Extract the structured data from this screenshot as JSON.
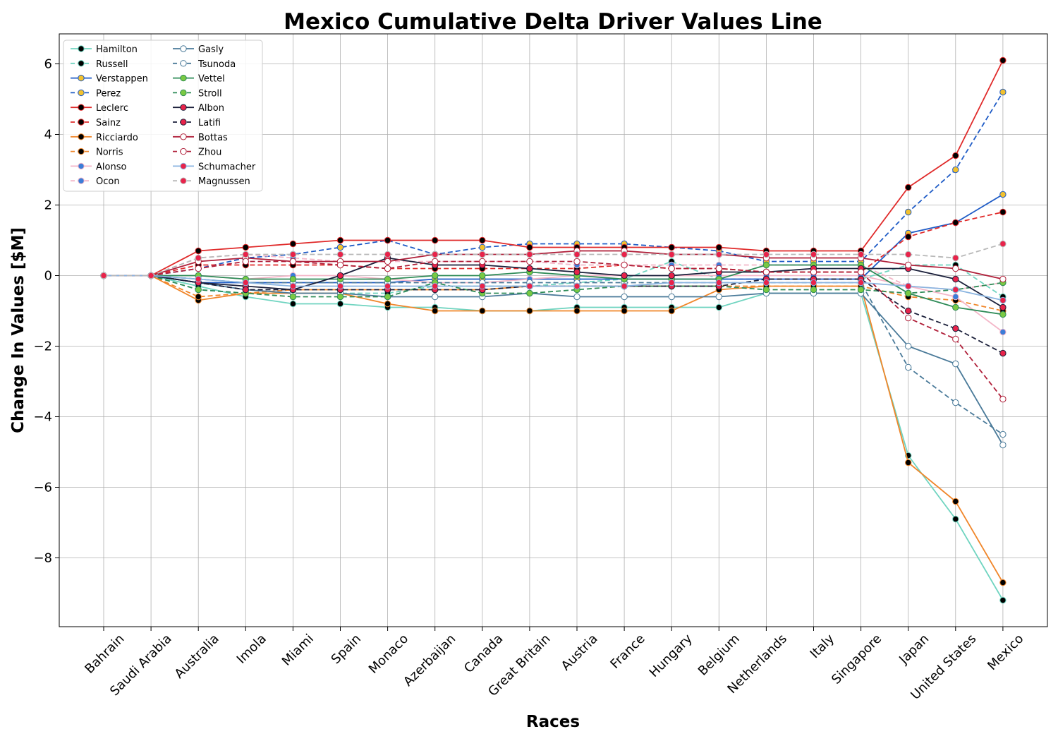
{
  "chart_data": {
    "type": "line",
    "title": "Mexico Cumulative Delta Driver Values Line",
    "xlabel": "Races",
    "ylabel": "Change In Values [$M]",
    "ylim": [
      -9.95,
      6.85
    ],
    "yticks": [
      -8,
      -6,
      -4,
      -2,
      0,
      2,
      4,
      6
    ],
    "grid": true,
    "legend_position": "top-left",
    "categories": [
      "Bahrain",
      "Saudi Arabia",
      "Australia",
      "Imola",
      "Miami",
      "Spain",
      "Monaco",
      "Azerbaijan",
      "Canada",
      "Great Britain",
      "Austria",
      "France",
      "Hungary",
      "Belgium",
      "Netherlands",
      "Italy",
      "Singapore",
      "Japan",
      "United States",
      "Mexico"
    ],
    "series": [
      {
        "name": "Hamilton",
        "color": "#6fd4c0",
        "marker": "#000000",
        "dashed": false,
        "values": [
          0,
          0,
          -0.3,
          -0.6,
          -0.8,
          -0.8,
          -0.9,
          -0.9,
          -1.0,
          -1.0,
          -0.9,
          -0.9,
          -0.9,
          -0.9,
          -0.5,
          -0.5,
          -0.5,
          -5.1,
          -6.9,
          -9.2
        ]
      },
      {
        "name": "Russell",
        "color": "#6fd4c0",
        "marker": "#000000",
        "dashed": true,
        "values": [
          0,
          0,
          -0.4,
          -0.5,
          -0.5,
          -0.5,
          -0.5,
          -0.3,
          -0.3,
          -0.3,
          -0.2,
          -0.1,
          0.4,
          -0.1,
          -0.1,
          -0.1,
          -0.1,
          0.3,
          0.3,
          -0.6
        ]
      },
      {
        "name": "Verstappen",
        "color": "#1e5bc6",
        "marker": "#f2c12e",
        "dashed": false,
        "values": [
          0,
          0,
          -0.2,
          -0.2,
          -0.2,
          -0.2,
          -0.2,
          -0.1,
          -0.1,
          -0.1,
          -0.1,
          -0.1,
          -0.1,
          -0.1,
          -0.1,
          -0.1,
          -0.1,
          1.2,
          1.5,
          2.3
        ]
      },
      {
        "name": "Perez",
        "color": "#1e5bc6",
        "marker": "#f2c12e",
        "dashed": true,
        "values": [
          0,
          0,
          0.2,
          0.5,
          0.6,
          0.8,
          1.0,
          0.6,
          0.8,
          0.9,
          0.9,
          0.9,
          0.8,
          0.7,
          0.4,
          0.4,
          0.4,
          1.8,
          3.0,
          5.2
        ]
      },
      {
        "name": "Leclerc",
        "color": "#e02a2a",
        "marker": "#000000",
        "dashed": false,
        "values": [
          0,
          0,
          0.7,
          0.8,
          0.9,
          1.0,
          1.0,
          1.0,
          1.0,
          0.8,
          0.8,
          0.8,
          0.8,
          0.8,
          0.7,
          0.7,
          0.7,
          2.5,
          3.4,
          6.1
        ]
      },
      {
        "name": "Sainz",
        "color": "#e02a2a",
        "marker": "#000000",
        "dashed": true,
        "values": [
          0,
          0,
          0.3,
          0.3,
          0.3,
          0.3,
          0.2,
          0.2,
          0.2,
          0.2,
          0.2,
          0.3,
          0.2,
          0.2,
          0.1,
          0.1,
          0.1,
          1.1,
          1.5,
          1.8
        ]
      },
      {
        "name": "Ricciardo",
        "color": "#f0862a",
        "marker": "#000000",
        "dashed": false,
        "values": [
          0,
          0,
          -0.7,
          -0.5,
          -0.5,
          -0.5,
          -0.8,
          -1.0,
          -1.0,
          -1.0,
          -1.0,
          -1.0,
          -1.0,
          -0.4,
          -0.3,
          -0.3,
          -0.3,
          -5.3,
          -6.4,
          -8.7
        ]
      },
      {
        "name": "Norris",
        "color": "#f0862a",
        "marker": "#000000",
        "dashed": true,
        "values": [
          0,
          0,
          -0.6,
          -0.5,
          -0.4,
          -0.4,
          -0.4,
          -0.4,
          -0.4,
          -0.3,
          -0.3,
          -0.3,
          -0.3,
          -0.3,
          -0.3,
          -0.3,
          -0.3,
          -0.6,
          -0.7,
          -1.0
        ]
      },
      {
        "name": "Alonso",
        "color": "#f4b6c8",
        "marker": "#3b7dd8",
        "dashed": false,
        "values": [
          0,
          0,
          0.0,
          -0.1,
          0.0,
          0.0,
          -0.1,
          -0.2,
          -0.2,
          -0.1,
          0.0,
          0.0,
          0.0,
          0.0,
          0.0,
          0.0,
          0.0,
          -0.3,
          -0.6,
          -1.6
        ]
      },
      {
        "name": "Ocon",
        "color": "#f4b6c8",
        "marker": "#3b7dd8",
        "dashed": true,
        "values": [
          0,
          0,
          0.5,
          0.6,
          0.5,
          0.4,
          0.4,
          0.4,
          0.4,
          0.4,
          0.3,
          0.3,
          0.3,
          0.3,
          0.3,
          0.3,
          0.3,
          -0.3,
          -0.4,
          -0.2
        ]
      },
      {
        "name": "Gasly",
        "color": "#4a7a99",
        "marker": "#ffffff",
        "dashed": false,
        "values": [
          0,
          0,
          -0.2,
          -0.4,
          -0.5,
          -0.5,
          -0.6,
          -0.6,
          -0.6,
          -0.5,
          -0.6,
          -0.6,
          -0.6,
          -0.6,
          -0.5,
          -0.5,
          -0.5,
          -2.0,
          -2.5,
          -4.8
        ]
      },
      {
        "name": "Tsunoda",
        "color": "#4a7a99",
        "marker": "#ffffff",
        "dashed": true,
        "values": [
          0,
          0,
          -0.1,
          -0.2,
          -0.2,
          -0.2,
          -0.2,
          -0.2,
          -0.2,
          -0.2,
          -0.2,
          -0.2,
          -0.2,
          -0.2,
          -0.2,
          -0.2,
          -0.2,
          -2.6,
          -3.6,
          -4.5
        ]
      },
      {
        "name": "Vettel",
        "color": "#2e8b57",
        "marker": "#7ac943",
        "dashed": false,
        "values": [
          0,
          0,
          0.0,
          -0.1,
          -0.1,
          -0.1,
          -0.1,
          0.0,
          0.0,
          0.1,
          0.0,
          -0.1,
          -0.1,
          -0.1,
          0.3,
          0.3,
          0.3,
          -0.5,
          -0.9,
          -1.1
        ]
      },
      {
        "name": "Stroll",
        "color": "#2e8b57",
        "marker": "#7ac943",
        "dashed": true,
        "values": [
          0,
          0,
          -0.4,
          -0.5,
          -0.6,
          -0.6,
          -0.6,
          -0.2,
          -0.5,
          -0.5,
          -0.4,
          -0.3,
          -0.3,
          -0.3,
          -0.4,
          -0.4,
          -0.4,
          -0.5,
          -0.4,
          -0.2
        ]
      },
      {
        "name": "Albon",
        "color": "#1a1f3a",
        "marker": "#e8234a",
        "dashed": false,
        "values": [
          0,
          0,
          -0.2,
          -0.3,
          -0.4,
          0.0,
          0.5,
          0.3,
          0.3,
          0.2,
          0.1,
          0.0,
          0.0,
          0.1,
          0.1,
          0.2,
          0.2,
          0.2,
          -0.1,
          -0.9
        ]
      },
      {
        "name": "Latifi",
        "color": "#1a1f3a",
        "marker": "#e8234a",
        "dashed": true,
        "values": [
          0,
          0,
          -0.2,
          -0.4,
          -0.4,
          -0.4,
          -0.4,
          -0.4,
          -0.4,
          -0.3,
          -0.3,
          -0.3,
          -0.3,
          -0.3,
          -0.1,
          -0.1,
          -0.1,
          -1.0,
          -1.5,
          -2.2
        ]
      },
      {
        "name": "Bottas",
        "color": "#b0203a",
        "marker": "#ffffff",
        "dashed": false,
        "values": [
          0,
          0,
          0.4,
          0.5,
          0.4,
          0.4,
          0.4,
          0.6,
          0.6,
          0.6,
          0.7,
          0.7,
          0.6,
          0.6,
          0.5,
          0.5,
          0.5,
          0.3,
          0.2,
          -0.1
        ]
      },
      {
        "name": "Zhou",
        "color": "#b0203a",
        "marker": "#ffffff",
        "dashed": true,
        "values": [
          0,
          0,
          0.2,
          0.4,
          0.4,
          0.3,
          0.2,
          0.4,
          0.4,
          0.4,
          0.4,
          0.3,
          0.2,
          0.2,
          0.1,
          0.1,
          0.1,
          -1.2,
          -1.8,
          -3.5
        ]
      },
      {
        "name": "Schumacher",
        "color": "#8ab4e0",
        "marker": "#e8234a",
        "dashed": false,
        "values": [
          0,
          0,
          -0.1,
          -0.2,
          -0.3,
          -0.3,
          -0.3,
          -0.3,
          -0.3,
          -0.3,
          -0.3,
          -0.3,
          -0.2,
          -0.2,
          -0.2,
          -0.2,
          -0.2,
          -0.3,
          -0.4,
          -0.7
        ]
      },
      {
        "name": "Magnussen",
        "color": "#b8b8b8",
        "marker": "#e8234a",
        "dashed": true,
        "values": [
          0,
          0,
          0.5,
          0.6,
          0.6,
          0.6,
          0.6,
          0.6,
          0.6,
          0.6,
          0.6,
          0.6,
          0.6,
          0.6,
          0.6,
          0.6,
          0.6,
          0.6,
          0.5,
          0.9
        ]
      }
    ]
  }
}
